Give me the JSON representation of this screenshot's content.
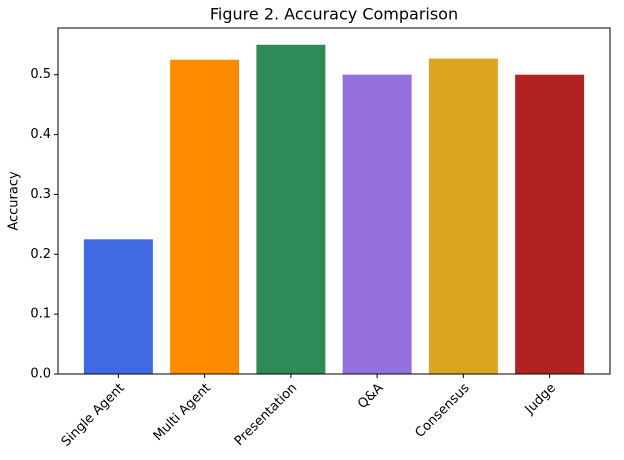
{
  "chart_data": {
    "type": "bar",
    "title": "Figure 2. Accuracy Comparison",
    "y_label": "Accuracy",
    "categories": [
      "Single Agent",
      "Multi Agent",
      "Presentation",
      "Q&A",
      "Consensus",
      "Judge"
    ],
    "values": [
      0.225,
      0.525,
      0.55,
      0.5,
      0.527,
      0.5
    ],
    "colors": [
      "#4169e1",
      "#ff8c00",
      "#2e8b57",
      "#9370db",
      "#daa520",
      "#b22222"
    ],
    "ylim": [
      0,
      0.578
    ],
    "yticks": [
      {
        "value": 0,
        "label": "0.0"
      },
      0.1,
      0.2,
      0.3,
      0.4,
      0.5
    ],
    "grid": false
  }
}
